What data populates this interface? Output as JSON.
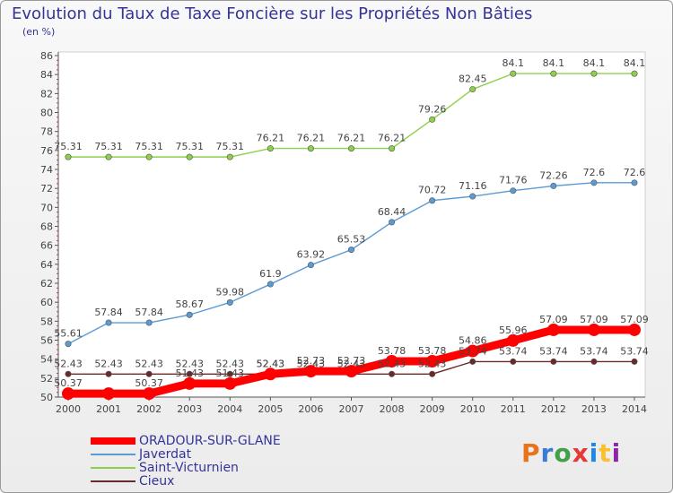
{
  "page": {
    "title": "Evolution du Taux de Taxe Foncière sur les Propriétés Non Bâties",
    "subtitle": "(en %)"
  },
  "logo": {
    "text": "Proxiti",
    "letter_colors": [
      "#e8731a",
      "#3a7bd5",
      "#43a047",
      "#e53935",
      "#1e88e5",
      "#fbc02d",
      "#8e24aa"
    ]
  },
  "chart_data": {
    "type": "line",
    "title": "Evolution du Taux de Taxe Foncière sur les Propriétés Non Bâties",
    "ylabel": "(en %)",
    "xlabel": "",
    "x": [
      "2000",
      "2001",
      "2002",
      "2003",
      "2004",
      "2005",
      "2006",
      "2007",
      "2008",
      "2009",
      "2010",
      "2011",
      "2012",
      "2013",
      "2014"
    ],
    "ylim": [
      50,
      86
    ],
    "yticks": [
      50,
      52,
      54,
      56,
      58,
      60,
      62,
      64,
      66,
      68,
      70,
      72,
      74,
      76,
      78,
      80,
      82,
      84,
      86
    ],
    "grid": false,
    "legend_position": "bottom-left",
    "series": [
      {
        "name": "ORADOUR-SUR-GLANE",
        "color": "#ff0000",
        "values": [
          50.37,
          50.37,
          50.37,
          51.43,
          51.43,
          52.43,
          52.73,
          52.73,
          53.78,
          53.78,
          54.86,
          55.96,
          57.09,
          57.09,
          57.09
        ],
        "labels": [
          "50.37",
          "",
          "50.37",
          "51.43",
          "51.43",
          "52.43",
          "52.73",
          "52.73",
          "53.78",
          "53.78",
          "54.86",
          "55.96",
          "57.09",
          "57.09",
          "57.09"
        ]
      },
      {
        "name": "Javerdat",
        "color": "#5b9bd5",
        "values": [
          55.61,
          57.84,
          57.84,
          58.67,
          59.98,
          61.9,
          63.92,
          65.53,
          68.44,
          70.72,
          71.16,
          71.76,
          72.26,
          72.6,
          72.6
        ],
        "labels": [
          "55.61",
          "57.84",
          "57.84",
          "58.67",
          "59.98",
          "61.9",
          "63.92",
          "65.53",
          "68.44",
          "70.72",
          "71.16",
          "71.76",
          "72.26",
          "72.6",
          "72.6"
        ]
      },
      {
        "name": "Saint-Victurnien",
        "color": "#8ed04a",
        "values": [
          75.31,
          75.31,
          75.31,
          75.31,
          75.31,
          76.21,
          76.21,
          76.21,
          76.21,
          79.26,
          82.45,
          84.1,
          84.1,
          84.1,
          84.1
        ],
        "labels": [
          "75.31",
          "75.31",
          "75.31",
          "75.31",
          "75.31",
          "76.21",
          "76.21",
          "76.21",
          "76.21",
          "79.26",
          "82.45",
          "84.1",
          "84.1",
          "84.1",
          "84.1"
        ]
      },
      {
        "name": "Cieux",
        "color": "#6b2a2a",
        "values": [
          52.43,
          52.43,
          52.43,
          52.43,
          52.43,
          52.43,
          52.43,
          52.43,
          52.43,
          52.43,
          53.74,
          53.74,
          53.74,
          53.74,
          53.74
        ],
        "labels": [
          "52.43",
          "52.43",
          "52.43",
          "52.43",
          "52.43",
          "52.43",
          "52.43",
          "52.43",
          "52.43",
          "52.43",
          "53.74",
          "53.74",
          "53.74",
          "53.74",
          "53.74"
        ]
      }
    ]
  }
}
